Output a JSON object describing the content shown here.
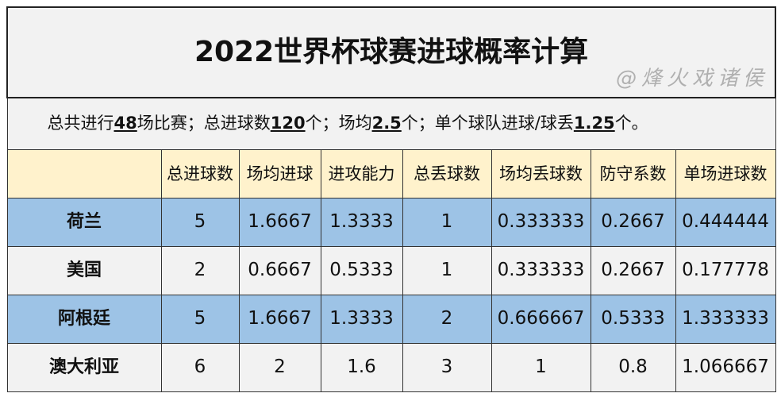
{
  "title": "2022世界杯球赛进球概率计算",
  "summary": {
    "p1": "总共进行",
    "games": "48",
    "p2": "场比赛；总进球数",
    "goals": "120",
    "p3": "个；场均",
    "avg": "2.5",
    "p4": "个；单个球队进球/球丢",
    "team": "1.25",
    "p5": "个。"
  },
  "headers": [
    "",
    "总进球数",
    "场均进球",
    "进攻能力",
    "总丢球数",
    "场均丢球数",
    "防守系数",
    "单场进球数"
  ],
  "rows": [
    {
      "cells": [
        "荷兰",
        "5",
        "1.6667",
        "1.3333",
        "1",
        "0.333333",
        "0.2667",
        "0.444444"
      ],
      "color": "#9dc3e6"
    },
    {
      "cells": [
        "美国",
        "2",
        "0.6667",
        "0.5333",
        "1",
        "0.333333",
        "0.2667",
        "0.177778"
      ],
      "color": "#f2f2f2"
    },
    {
      "cells": [
        "阿根廷",
        "5",
        "1.6667",
        "1.3333",
        "2",
        "0.666667",
        "0.5333",
        "1.333333"
      ],
      "color": "#9dc3e6"
    },
    {
      "cells": [
        "澳大利亚",
        "6",
        "2",
        "1.6",
        "3",
        "1",
        "0.8",
        "1.066667"
      ],
      "color": "#f2f2f2"
    }
  ],
  "watermark": "@烽火戏诸侯"
}
